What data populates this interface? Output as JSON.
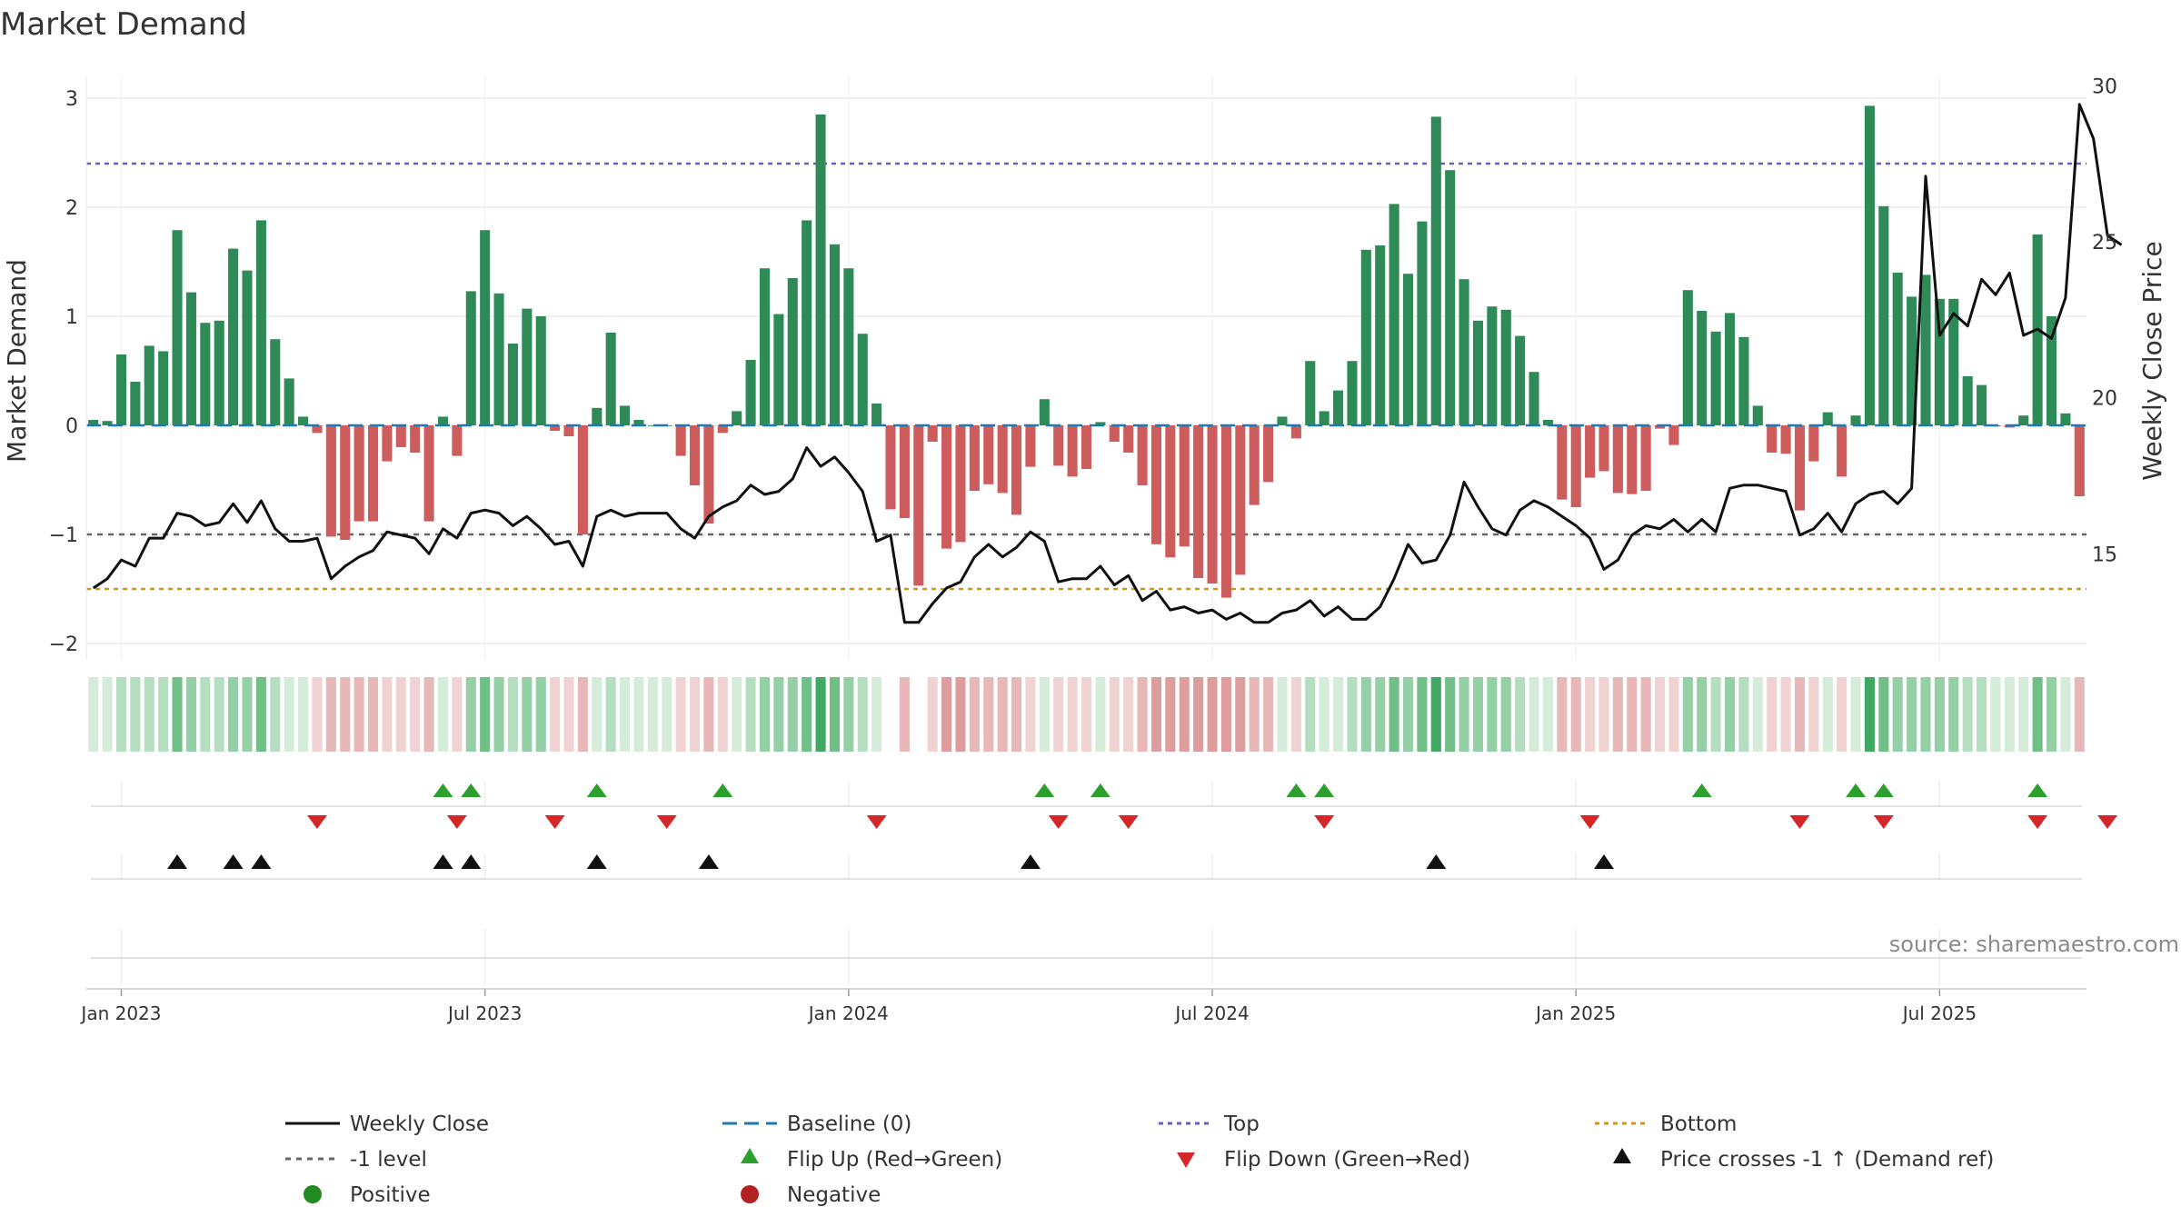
{
  "chart_data": {
    "type": "bar",
    "title": "Market Demand",
    "ylabel": "Market Demand",
    "y2label": "Weekly Close Price",
    "ylim": [
      -2.15,
      3.2
    ],
    "y2lim": [
      11.6,
      30.3
    ],
    "yticks": [
      -2,
      -1,
      0,
      1,
      2,
      3
    ],
    "y2ticks": [
      15,
      20,
      25,
      30
    ],
    "ytick_labels": [
      "−2",
      "−1",
      "0",
      "1",
      "2",
      "3"
    ],
    "y2tick_labels": [
      "15",
      "20",
      "25",
      "30"
    ],
    "xtick_labels": [
      "Jan 2023",
      "Jul 2023",
      "Jan 2024",
      "Jul 2024",
      "Jan 2025",
      "Jul 2025"
    ],
    "xtick_weeks": [
      2,
      28,
      54,
      80,
      106,
      132
    ],
    "reference_lines": {
      "baseline": 0,
      "top": 2.4,
      "bottom": -1.5,
      "minus_one": -1.0
    },
    "demand": [
      0.05,
      0.04,
      0.65,
      0.4,
      0.73,
      0.68,
      1.79,
      1.22,
      0.94,
      0.96,
      1.62,
      1.42,
      1.88,
      0.79,
      0.43,
      0.08,
      -0.07,
      -1.02,
      -1.05,
      -0.88,
      -0.88,
      -0.33,
      -0.2,
      -0.25,
      -0.88,
      0.08,
      -0.28,
      1.23,
      1.79,
      1.21,
      0.75,
      1.07,
      1.0,
      -0.05,
      -0.1,
      -1.0,
      0.16,
      0.85,
      0.18,
      0.05,
      0.0,
      0.0,
      -0.28,
      -0.55,
      -0.9,
      -0.07,
      0.13,
      0.6,
      1.44,
      1.02,
      1.35,
      1.88,
      2.85,
      1.66,
      1.44,
      0.84,
      0.2,
      -0.77,
      -0.85,
      -1.47,
      -0.15,
      -1.13,
      -1.07,
      -0.6,
      -0.54,
      -0.62,
      -0.82,
      -0.38,
      0.24,
      -0.37,
      -0.47,
      -0.4,
      0.03,
      -0.15,
      -0.25,
      -0.55,
      -1.09,
      -1.21,
      -1.11,
      -1.4,
      -1.45,
      -1.58,
      -1.37,
      -0.73,
      -0.52,
      0.08,
      -0.12,
      0.59,
      0.13,
      0.32,
      0.59,
      1.61,
      1.65,
      2.03,
      1.39,
      1.87,
      2.83,
      2.34,
      1.34,
      0.96,
      1.09,
      1.06,
      0.82,
      0.49,
      0.05,
      -0.68,
      -0.75,
      -0.48,
      -0.42,
      -0.62,
      -0.63,
      -0.6,
      -0.03,
      -0.18,
      1.24,
      1.05,
      0.86,
      1.03,
      0.81,
      0.18,
      -0.25,
      -0.26,
      -0.78,
      -0.33,
      0.12,
      -0.47,
      0.09,
      2.93,
      2.01,
      1.4,
      1.18,
      1.38,
      1.16,
      1.16,
      0.45,
      0.37,
      -0.01,
      -0.02,
      0.09,
      1.75,
      1.0,
      0.11,
      -0.65
    ],
    "price": [
      13.9,
      14.2,
      14.8,
      14.6,
      15.5,
      15.5,
      16.3,
      16.2,
      15.9,
      16.0,
      16.6,
      16.0,
      16.7,
      15.8,
      15.4,
      15.4,
      15.5,
      14.2,
      14.6,
      14.9,
      15.1,
      15.7,
      15.6,
      15.5,
      15.0,
      15.8,
      15.5,
      16.3,
      16.4,
      16.3,
      15.9,
      16.2,
      15.8,
      15.3,
      15.4,
      14.6,
      16.2,
      16.4,
      16.2,
      16.3,
      16.3,
      16.3,
      15.8,
      15.5,
      16.2,
      16.5,
      16.7,
      17.2,
      16.9,
      17.0,
      17.4,
      18.4,
      17.8,
      18.1,
      17.6,
      17.0,
      15.4,
      15.6,
      12.8,
      12.8,
      13.4,
      13.9,
      14.1,
      14.9,
      15.3,
      14.9,
      15.2,
      15.7,
      15.4,
      14.1,
      14.2,
      14.2,
      14.6,
      14.0,
      14.3,
      13.5,
      13.8,
      13.2,
      13.3,
      13.1,
      13.2,
      12.9,
      13.1,
      12.8,
      12.8,
      13.1,
      13.2,
      13.5,
      13.0,
      13.3,
      12.9,
      12.9,
      13.3,
      14.2,
      15.3,
      14.7,
      14.8,
      15.6,
      17.3,
      16.5,
      15.8,
      15.6,
      16.4,
      16.7,
      16.5,
      16.2,
      15.9,
      15.5,
      14.5,
      14.8,
      15.6,
      15.9,
      15.8,
      16.1,
      15.7,
      16.1,
      15.7,
      17.1,
      17.2,
      17.2,
      17.1,
      17.0,
      15.6,
      15.8,
      16.3,
      15.7,
      16.6,
      16.9,
      17.0,
      16.6,
      17.1,
      27.1,
      22.0,
      22.7,
      22.3,
      23.8,
      23.3,
      24.0,
      22.0,
      22.2,
      21.9,
      23.2,
      29.4,
      28.3,
      25.2,
      24.9
    ],
    "heatmap_levels": [
      1,
      1,
      2,
      2,
      2,
      2,
      4,
      3,
      2,
      2,
      3,
      3,
      4,
      2,
      1,
      1,
      -1,
      -2,
      -2,
      -2,
      -2,
      -1,
      -1,
      -1,
      -2,
      1,
      -1,
      3,
      4,
      3,
      2,
      3,
      3,
      -1,
      -1,
      -2,
      1,
      2,
      1,
      1,
      1,
      1,
      -1,
      -1,
      -2,
      -1,
      1,
      2,
      3,
      3,
      3,
      4,
      5,
      4,
      3,
      2,
      1,
      -2,
      -2,
      -3,
      -1,
      -3,
      -3,
      -2,
      -2,
      -2,
      -2,
      -1,
      1,
      -1,
      -1,
      -1,
      1,
      -1,
      -1,
      -2,
      -3,
      -3,
      -3,
      -3,
      -3,
      -3,
      -3,
      -2,
      -2,
      1,
      -1,
      2,
      1,
      1,
      2,
      3,
      3,
      4,
      3,
      4,
      5,
      4,
      3,
      3,
      3,
      3,
      2,
      1,
      1,
      -2,
      -2,
      -1,
      -1,
      -2,
      -2,
      -2,
      -1,
      -1,
      3,
      3,
      2,
      3,
      2,
      1,
      -1,
      -1,
      -2,
      -1,
      1,
      -1,
      1,
      5,
      4,
      3,
      3,
      3,
      3,
      3,
      2,
      2,
      1,
      1,
      1,
      4,
      3,
      1,
      -2
    ],
    "heatmap_gaps": [
      57,
      59
    ],
    "flip_up_weeks": [
      25,
      27,
      36,
      45,
      68,
      72,
      86,
      88,
      115,
      126,
      128,
      139
    ],
    "flip_down_weeks": [
      16,
      26,
      33,
      41,
      56,
      69,
      74,
      88,
      107,
      122,
      128,
      139,
      144
    ],
    "price_cross_weeks": [
      6,
      10,
      12,
      25,
      27,
      36,
      44,
      67,
      96,
      108
    ],
    "legend": [
      "Weekly Close",
      "Baseline (0)",
      "Top",
      "Bottom",
      "-1 level",
      "Flip Up (Red→Green)",
      "Flip Down (Green→Red)",
      "Price crosses -1 ↑ (Demand ref)",
      "Positive",
      "Negative"
    ],
    "source": "source: sharemaestro.com"
  },
  "colors": {
    "positive_bar": "#2e8b57",
    "negative_bar": "#cd5c5c",
    "price_line": "#111111",
    "baseline": "#1f77b4",
    "top_line": "#6a5acd",
    "bottom_line": "#d4950a",
    "minus_one_line": "#666666",
    "flip_up": "#2ca02c",
    "flip_down": "#d62728",
    "price_cross": "#111111",
    "positive_dot": "#228b22",
    "negative_dot": "#b22222"
  }
}
